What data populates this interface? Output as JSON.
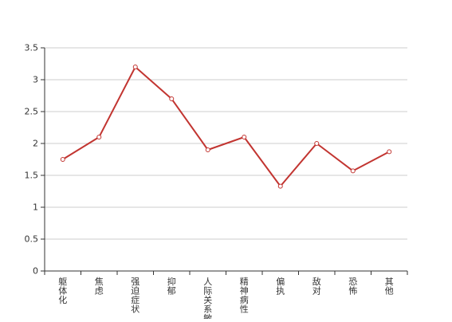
{
  "chart_data": {
    "type": "line",
    "title": "",
    "xlabel": "",
    "ylabel": "",
    "categories": [
      "躯体化",
      "焦虑",
      "强迫症状",
      "抑郁",
      "人际关系敏感",
      "精神病性",
      "偏执",
      "敌对",
      "恐怖",
      "其他"
    ],
    "y_ticks": [
      "0",
      "0.5",
      "1",
      "1.5",
      "2",
      "2.5",
      "3",
      "3.5"
    ],
    "ylim": [
      0,
      3.5
    ],
    "grid": true,
    "series": [
      {
        "values": [
          1.75,
          2.1,
          3.2,
          2.7,
          1.9,
          2.1,
          1.33,
          2.0,
          1.57,
          1.87
        ],
        "color": "#c23531"
      }
    ],
    "axis_color": "#333333",
    "grid_color": "#cccccc"
  }
}
